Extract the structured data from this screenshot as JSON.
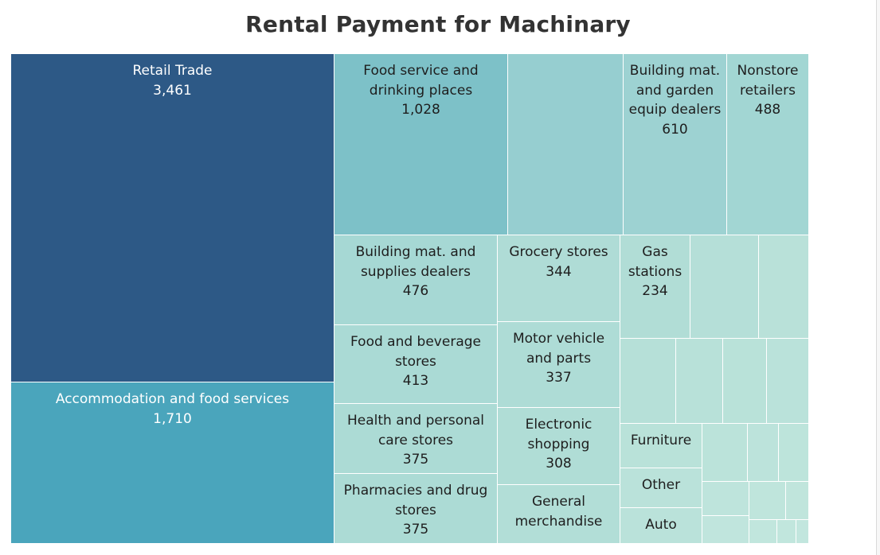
{
  "chart_data": {
    "type": "treemap",
    "title": "Rental Payment for Machinary",
    "items": [
      {
        "name": [
          "Retail Trade"
        ],
        "value": "3,461",
        "color": "#2d5986"
      },
      {
        "name": [
          "Accommodation and food services"
        ],
        "value": "1,710",
        "color": "#4aa5bc"
      },
      {
        "name": [
          "Food service and",
          "drinking places"
        ],
        "value": "1,028",
        "color": "#7dc1c8"
      },
      {
        "name": [],
        "value": "",
        "color": "#96ced0"
      },
      {
        "name": [
          "Building mat.",
          "and garden",
          "equip dealers"
        ],
        "value": "610",
        "color": "#9dd2d2"
      },
      {
        "name": [
          "Nonstore",
          "retailers"
        ],
        "value": "488",
        "color": "#a2d6d3"
      },
      {
        "name": [
          "Building mat. and",
          "supplies dealers"
        ],
        "value": "476",
        "color": "#a6d8d4"
      },
      {
        "name": [
          "Grocery stores"
        ],
        "value": "344",
        "color": "#afdcd6"
      },
      {
        "name": [
          "Gas",
          "stations"
        ],
        "value": "234",
        "color": "#b1ddd6"
      },
      {
        "name": [],
        "value": "",
        "color": "#b5dfd8"
      },
      {
        "name": [],
        "value": "",
        "color": "#b9e1d9"
      },
      {
        "name": [
          "Food and beverage",
          "stores"
        ],
        "value": "413",
        "color": "#aadad5"
      },
      {
        "name": [
          "Motor vehicle",
          "and parts"
        ],
        "value": "337",
        "color": "#aedcd6"
      },
      {
        "name": [
          "Health and personal",
          "care stores"
        ],
        "value": "375",
        "color": "#acdbd5"
      },
      {
        "name": [
          "Electronic",
          "shopping"
        ],
        "value": "308",
        "color": "#b0ddd6"
      },
      {
        "name": [
          "Pharmacies and drug",
          "stores"
        ],
        "value": "375",
        "color": "#acdbd5"
      },
      {
        "name": [
          "General",
          "merchandise"
        ],
        "value": "",
        "color": "#b2ded7"
      },
      {
        "name": [],
        "value": "",
        "color": "#b6e0d8"
      },
      {
        "name": [],
        "value": "",
        "color": "#b8e1d9"
      },
      {
        "name": [],
        "value": "",
        "color": "#b9e2d9"
      },
      {
        "name": [],
        "value": "",
        "color": "#bae2da"
      },
      {
        "name": [
          "Furniture"
        ],
        "value": "",
        "color": "#b9e2d9"
      },
      {
        "name": [],
        "value": "",
        "color": "#bbe3da"
      },
      {
        "name": [],
        "value": "",
        "color": "#bce3db"
      },
      {
        "name": [],
        "value": "",
        "color": "#bde4db"
      },
      {
        "name": [
          "Other"
        ],
        "value": "",
        "color": "#bae2da"
      },
      {
        "name": [
          "Auto"
        ],
        "value": "",
        "color": "#bae2da"
      },
      {
        "name": [],
        "value": "",
        "color": "#bee4dc"
      },
      {
        "name": [],
        "value": "",
        "color": "#bfe5dc"
      },
      {
        "name": [],
        "value": "",
        "color": "#c0e5dc"
      },
      {
        "name": [],
        "value": "",
        "color": "#c0e5dd"
      },
      {
        "name": [],
        "value": "",
        "color": "#c1e6dd"
      },
      {
        "name": [],
        "value": "",
        "color": "#c1e6dd"
      },
      {
        "name": [],
        "value": "",
        "color": "#c2e6de"
      }
    ]
  }
}
